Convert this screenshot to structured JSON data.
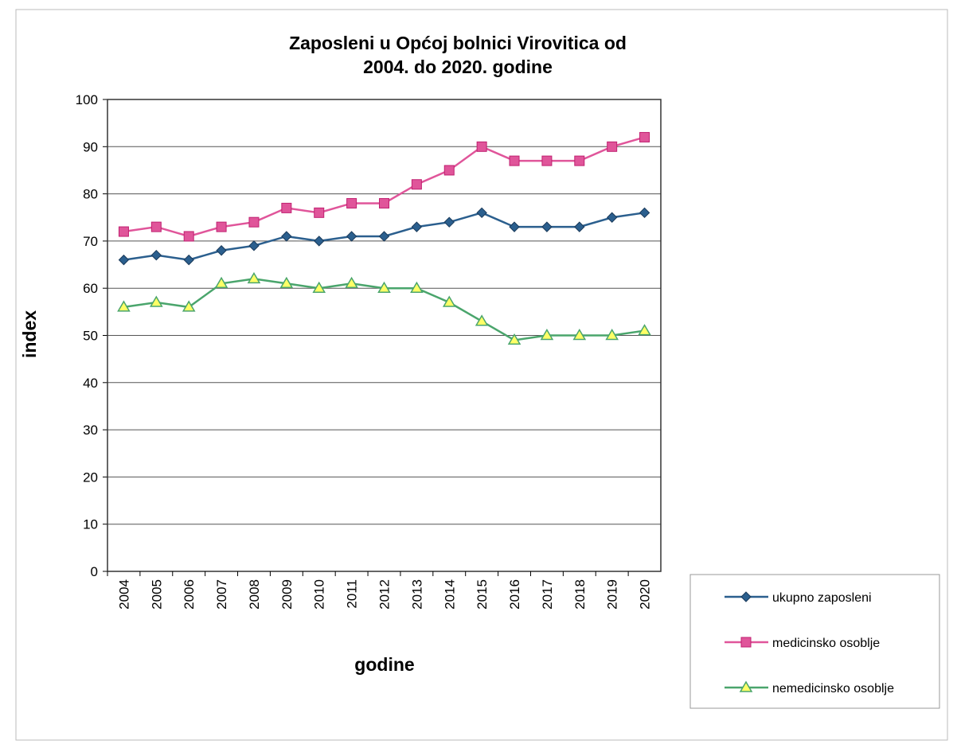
{
  "chart_data": {
    "type": "line",
    "title": [
      "Zaposleni u Općoj bolnici Virovitica od",
      "2004. do 2020. godine"
    ],
    "x_label": "godine",
    "y_label": "index",
    "categories": [
      "2004",
      "2005",
      "2006",
      "2007",
      "2008",
      "2009",
      "2010",
      "2011",
      "2012",
      "2013",
      "2014",
      "2015",
      "2016",
      "2017",
      "2018",
      "2019",
      "2020"
    ],
    "series": [
      {
        "name": "ukupno zaposleni",
        "color": "#2b5f8e",
        "marker": "diamond",
        "values": [
          66,
          67,
          66,
          68,
          69,
          71,
          70,
          71,
          71,
          73,
          74,
          76,
          73,
          73,
          73,
          75,
          76
        ]
      },
      {
        "name": "medicinsko osoblje",
        "color": "#e0559a",
        "marker": "square",
        "values": [
          72,
          73,
          71,
          73,
          74,
          77,
          76,
          78,
          78,
          82,
          85,
          90,
          87,
          87,
          87,
          90,
          92
        ]
      },
      {
        "name": "nemedicinsko osoblje",
        "color": "#4aa56c",
        "marker": "triangle",
        "values": [
          56,
          57,
          56,
          61,
          62,
          61,
          60,
          61,
          60,
          60,
          57,
          53,
          49,
          50,
          50,
          50,
          51
        ]
      }
    ],
    "ylim": [
      0,
      100
    ],
    "yticks": [
      0,
      10,
      20,
      30,
      40,
      50,
      60,
      70,
      80,
      90,
      100
    ],
    "grid": true,
    "legend": "right"
  }
}
